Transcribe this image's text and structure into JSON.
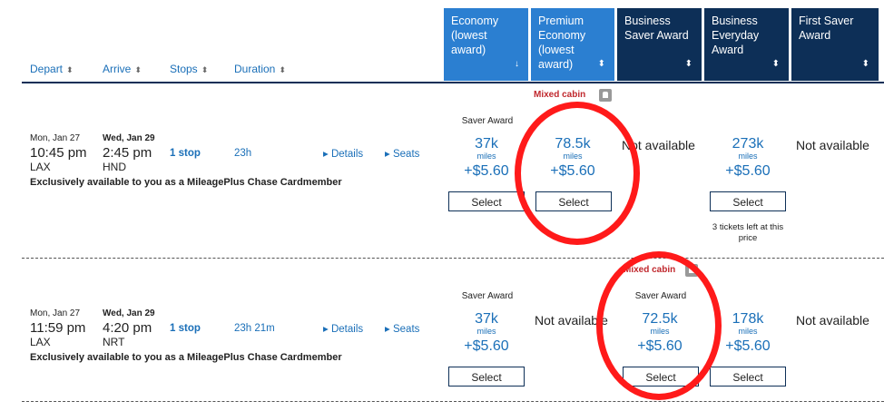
{
  "sort_headers": {
    "depart": "Depart",
    "arrive": "Arrive",
    "stops": "Stops",
    "duration": "Duration"
  },
  "cabin_headers": {
    "economy": "Economy (lowest award)",
    "premium": "Premium Economy (lowest award)",
    "business_saver": "Business Saver Award",
    "business_everyday": "Business Everyday Award",
    "first_saver": "First Saver Award"
  },
  "common": {
    "mixed_cabin": "Mixed cabin",
    "saver_award": "Saver Award",
    "select": "Select",
    "miles_label": "miles",
    "not_available": "Not available",
    "details": "Details",
    "seats": "Seats",
    "cardmember_note": "Exclusively available to you as a MileagePlus Chase Cardmember"
  },
  "flights": [
    {
      "depart_date": "Mon, Jan 27",
      "depart_time": "10:45 pm",
      "origin": "LAX",
      "arrive_date": "Wed, Jan 29",
      "arrive_time": "2:45 pm",
      "destination": "HND",
      "stops": "1 stop",
      "duration": "23h",
      "economy_miles": "37k",
      "economy_tax": "+$5.60",
      "premium_miles": "78.5k",
      "premium_tax": "+$5.60",
      "business_everyday_miles": "273k",
      "business_everyday_tax": "+$5.60",
      "tickets_left": "3 tickets left at this price"
    },
    {
      "depart_date": "Mon, Jan 27",
      "depart_time": "11:59 pm",
      "origin": "LAX",
      "arrive_date": "Wed, Jan 29",
      "arrive_time": "4:20 pm",
      "destination": "NRT",
      "stops": "1 stop",
      "duration": "23h 21m",
      "economy_miles": "37k",
      "economy_tax": "+$5.60",
      "business_saver_miles": "72.5k",
      "business_saver_tax": "+$5.60",
      "business_everyday_miles": "178k",
      "business_everyday_tax": "+$5.60"
    }
  ],
  "colors": {
    "header_light": "#2b7fd1",
    "header_dark": "#0d2f57",
    "link_blue": "#1a6fb8",
    "annotation_red": "#ff1a1a"
  }
}
